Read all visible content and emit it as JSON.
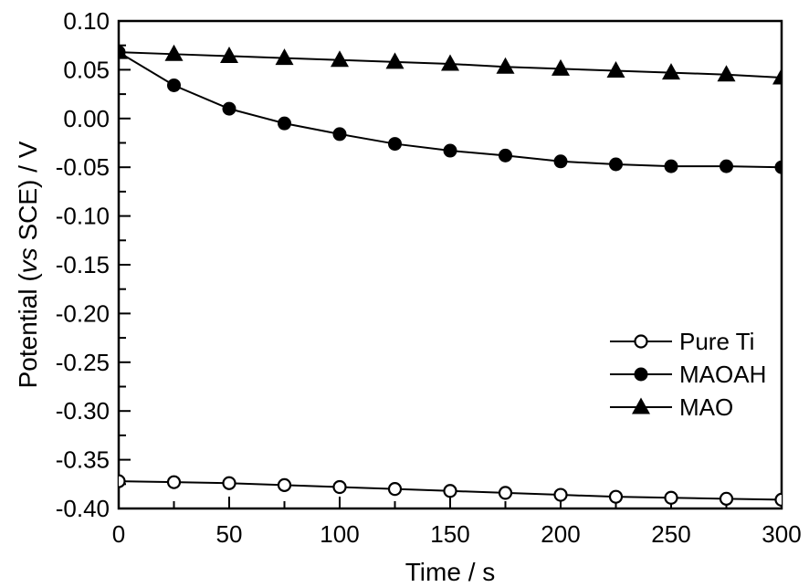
{
  "colors": {
    "foreground": "#000000",
    "background": "#ffffff"
  },
  "chart_data": {
    "type": "line",
    "title": "",
    "xlabel": "Time / s",
    "ylabel_parts": [
      {
        "text": "Potential (",
        "italic": false
      },
      {
        "text": "vs",
        "italic": true
      },
      {
        "text": " SCE) / V",
        "italic": false
      }
    ],
    "xlim": [
      0,
      300
    ],
    "ylim": [
      -0.4,
      0.1
    ],
    "x_major_ticks": [
      0,
      50,
      100,
      150,
      200,
      250,
      300
    ],
    "x_tick_labels": [
      "0",
      "50",
      "100",
      "150",
      "200",
      "250",
      "300"
    ],
    "x_minor_step": 25,
    "y_major_ticks": [
      0.1,
      0.05,
      0.0,
      -0.05,
      -0.1,
      -0.15,
      -0.2,
      -0.25,
      -0.3,
      -0.35,
      -0.4
    ],
    "y_tick_labels": [
      "0.10",
      "0.05",
      "0.00",
      "-0.05",
      "-0.10",
      "-0.15",
      "-0.20",
      "-0.25",
      "-0.30",
      "-0.35",
      "-0.40"
    ],
    "y_minor_step": 0.025,
    "grid": false,
    "legend_position": "lower-right",
    "x": [
      0,
      25,
      50,
      75,
      100,
      125,
      150,
      175,
      200,
      225,
      250,
      275,
      300
    ],
    "series": [
      {
        "name": "Pure Ti",
        "marker": "circle-open",
        "color": "#000000",
        "values": [
          -0.372,
          -0.373,
          -0.374,
          -0.376,
          -0.378,
          -0.38,
          -0.382,
          -0.384,
          -0.386,
          -0.388,
          -0.389,
          -0.39,
          -0.391
        ]
      },
      {
        "name": "MAOAH",
        "marker": "circle-filled",
        "color": "#000000",
        "values": [
          0.068,
          0.034,
          0.01,
          -0.005,
          -0.016,
          -0.026,
          -0.033,
          -0.038,
          -0.044,
          -0.047,
          -0.049,
          -0.049,
          -0.05
        ]
      },
      {
        "name": "MAO",
        "marker": "triangle-filled",
        "color": "#000000",
        "values": [
          0.068,
          0.066,
          0.064,
          0.062,
          0.06,
          0.058,
          0.056,
          0.053,
          0.051,
          0.049,
          0.047,
          0.045,
          0.042
        ]
      }
    ]
  }
}
